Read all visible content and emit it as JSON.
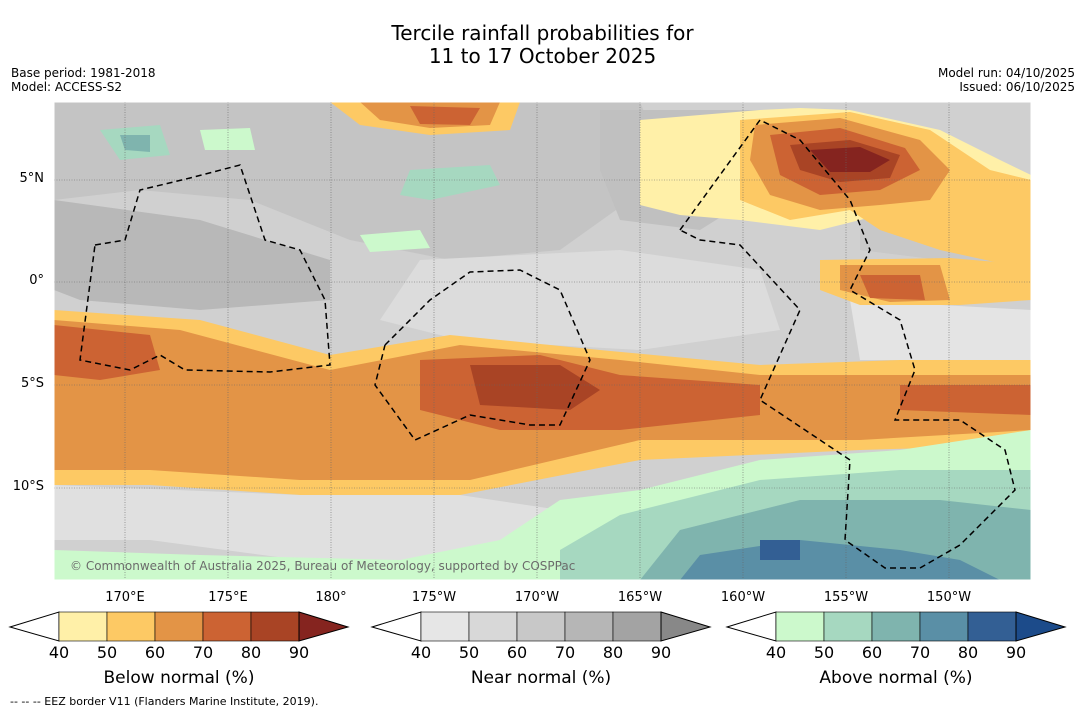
{
  "title_line1": "Tercile rainfall probabilities for",
  "title_line2": "11 to 17 October 2025",
  "left_info": {
    "base_period": "Base period: 1981-2018",
    "model": "Model: ACCESS-S2"
  },
  "right_info": {
    "model_run": "Model run: 04/10/2025",
    "issued": "Issued: 06/10/2025"
  },
  "map": {
    "lat_labels": [
      "5°N",
      "0°",
      "5°S",
      "10°S"
    ],
    "lon_labels": [
      "170°E",
      "175°E",
      "180°",
      "175°W",
      "170°W",
      "165°W",
      "160°W",
      "155°W",
      "150°W"
    ],
    "copyright": "© Commonwealth of Australia 2025, Bureau of Meteorology, supported by COSPPac"
  },
  "colorbars": [
    {
      "title": "Below normal (%)",
      "ticks": [
        "40",
        "50",
        "60",
        "70",
        "80",
        "90"
      ],
      "colors": [
        "#fff0a8",
        "#fdc964",
        "#e39446",
        "#cc6333",
        "#a94425",
        "#85241f"
      ]
    },
    {
      "title": "Near normal (%)",
      "ticks": [
        "40",
        "50",
        "60",
        "70",
        "80",
        "90"
      ],
      "colors": [
        "#e6e6e6",
        "#d8d8d8",
        "#c8c8c8",
        "#b6b6b6",
        "#a3a3a3",
        "#888888"
      ]
    },
    {
      "title": "Above normal (%)",
      "ticks": [
        "40",
        "50",
        "60",
        "70",
        "80",
        "90"
      ],
      "colors": [
        "#ccf9cc",
        "#a6d8c0",
        "#7fb4ae",
        "#5a8fa6",
        "#335f94",
        "#1c4b8a"
      ]
    }
  ],
  "footer": "--  --  -- EEZ border V11 (Flanders Marine Institute, 2019)."
}
